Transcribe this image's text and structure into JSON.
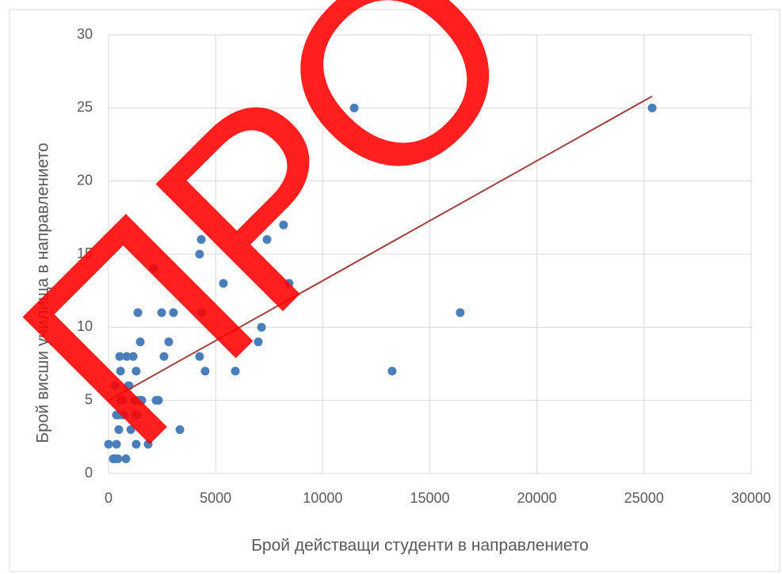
{
  "chart_data": {
    "type": "scatter",
    "x_label": "Брой действащи студенти в направлението",
    "y_label": "Брой висши училища в направлението",
    "watermark": "ПРО",
    "color": "#4a7ebb",
    "x": [
      0,
      220,
      370,
      300,
      370,
      440,
      330,
      480,
      480,
      520,
      560,
      560,
      670,
      700,
      810,
      850,
      920,
      960,
      1040,
      1150,
      1220,
      1260,
      1290,
      1290,
      1370,
      1370,
      1330,
      1480,
      1480,
      1550,
      1850,
      2110,
      2220,
      2330,
      2480,
      2590,
      2810,
      3030,
      3330,
      4250,
      4250,
      4330,
      4360,
      4510,
      5360,
      5920,
      6990,
      7140,
      7400,
      8170,
      8430,
      11470,
      13240,
      16420,
      25380
    ],
    "values": [
      2,
      1,
      2,
      6,
      4,
      1,
      1,
      4,
      3,
      8,
      7,
      5,
      5,
      4,
      1,
      8,
      6,
      6,
      3,
      8,
      5,
      4,
      7,
      2,
      5,
      11,
      4,
      5,
      9,
      5,
      2,
      14,
      5,
      5,
      11,
      8,
      9,
      11,
      3,
      15,
      8,
      16,
      11,
      7,
      13,
      7,
      9,
      10,
      16,
      17,
      13,
      25,
      7,
      11,
      25
    ],
    "trendline": {
      "color": "#a0413c",
      "x": [
        0,
        25380
      ],
      "y": [
        4.98,
        25.8
      ]
    },
    "xlim": [
      0,
      30000
    ],
    "xticks": [
      0,
      5000,
      10000,
      15000,
      20000,
      25000,
      30000
    ],
    "ylim": [
      0,
      30
    ],
    "yticks": [
      0,
      5,
      10,
      15,
      20,
      25,
      30
    ],
    "grid": true
  }
}
